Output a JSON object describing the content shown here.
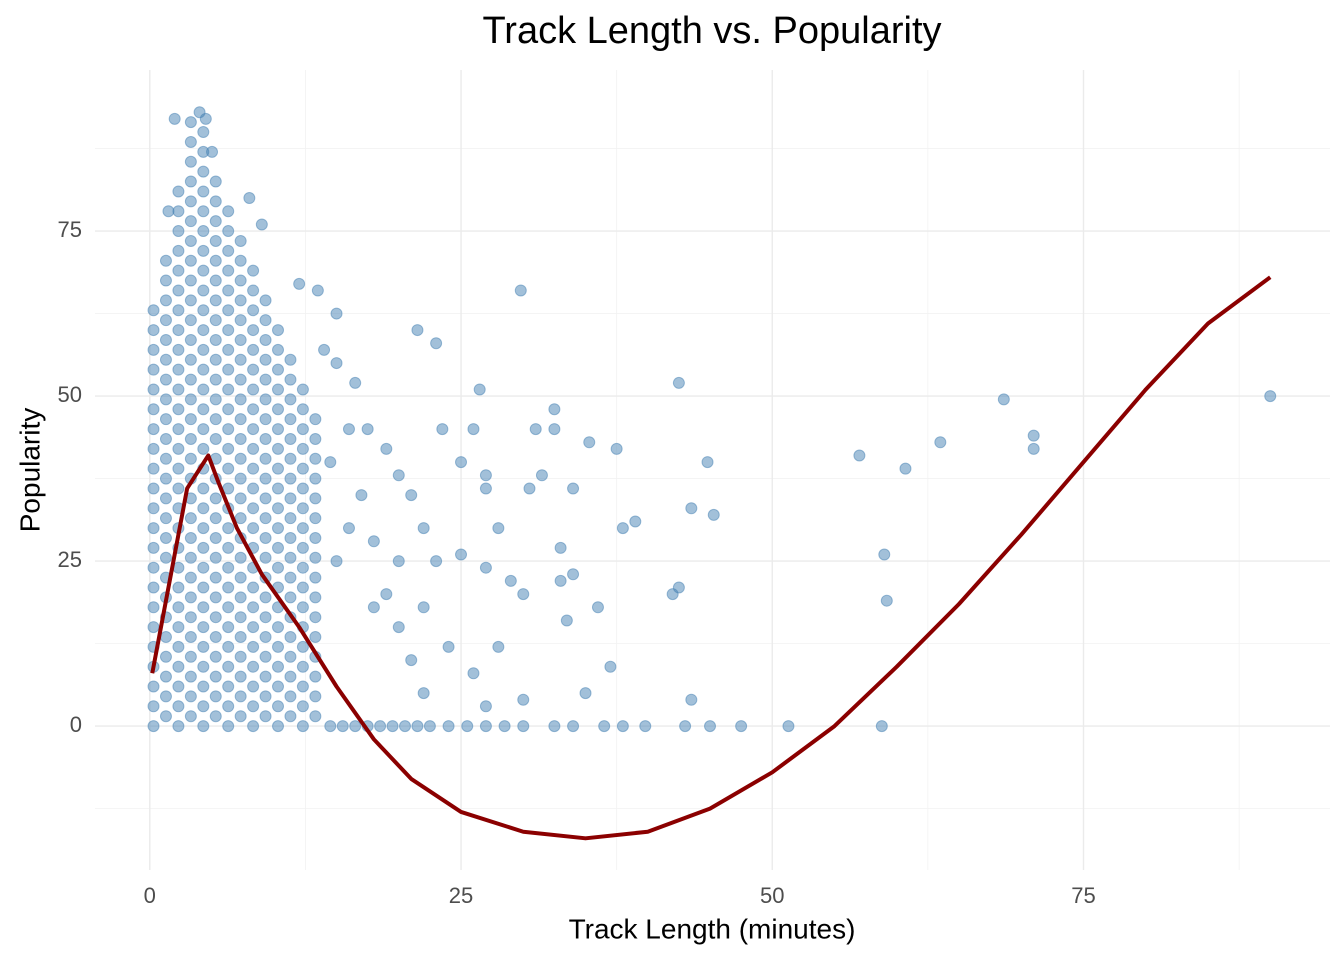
{
  "chart_data": {
    "type": "scatter",
    "title": "Track Length vs. Popularity",
    "x_label": "Track Length (minutes)",
    "y_label": "Popularity",
    "xlim": [
      -4.4,
      94.8
    ],
    "ylim": [
      -21.8,
      99.4
    ],
    "xticks": [
      0,
      25,
      50,
      75
    ],
    "yticks": [
      0,
      25,
      50,
      75
    ],
    "x_minor_ticks": [
      12.5,
      37.5,
      62.5,
      87.5
    ],
    "y_minor_ticks": [
      -12.5,
      12.5,
      37.5,
      62.5,
      87.5
    ],
    "grid": true,
    "points": {
      "color": "#4682b4",
      "opacity": 0.5,
      "x": [
        0.3,
        0.3,
        0.3,
        0.3,
        0.3,
        0.3,
        0.3,
        0.3,
        0.3,
        0.3,
        0.3,
        0.3,
        0.3,
        0.3,
        0.3,
        0.3,
        0.3,
        0.3,
        0.3,
        0.3,
        0.3,
        0.3,
        1.3,
        1.3,
        1.3,
        1.3,
        1.3,
        1.3,
        1.3,
        1.3,
        1.3,
        1.3,
        1.3,
        1.3,
        1.3,
        1.3,
        1.3,
        1.3,
        1.3,
        1.3,
        1.3,
        1.3,
        1.3,
        1.3,
        1.3,
        1.3,
        2.3,
        2.3,
        2.3,
        2.3,
        2.3,
        2.3,
        2.3,
        2.3,
        2.3,
        2.3,
        2.3,
        2.3,
        2.3,
        2.3,
        2.3,
        2.3,
        2.3,
        2.3,
        2.3,
        2.3,
        2.3,
        2.3,
        2.3,
        2.3,
        2.3,
        2.3,
        2.3,
        2.3,
        3.3,
        3.3,
        3.3,
        3.3,
        3.3,
        3.3,
        3.3,
        3.3,
        3.3,
        3.3,
        3.3,
        3.3,
        3.3,
        3.3,
        3.3,
        3.3,
        3.3,
        3.3,
        3.3,
        3.3,
        3.3,
        3.3,
        3.3,
        3.3,
        3.3,
        3.3,
        3.3,
        3.3,
        3.3,
        3.3,
        3.3,
        4.3,
        4.3,
        4.3,
        4.3,
        4.3,
        4.3,
        4.3,
        4.3,
        4.3,
        4.3,
        4.3,
        4.3,
        4.3,
        4.3,
        4.3,
        4.3,
        4.3,
        4.3,
        4.3,
        4.3,
        4.3,
        4.3,
        4.3,
        4.3,
        4.3,
        4.3,
        4.3,
        4.3,
        4.3,
        4.3,
        4.3,
        5.3,
        5.3,
        5.3,
        5.3,
        5.3,
        5.3,
        5.3,
        5.3,
        5.3,
        5.3,
        5.3,
        5.3,
        5.3,
        5.3,
        5.3,
        5.3,
        5.3,
        5.3,
        5.3,
        5.3,
        5.3,
        5.3,
        5.3,
        5.3,
        5.3,
        5.3,
        5.3,
        5.3,
        6.3,
        6.3,
        6.3,
        6.3,
        6.3,
        6.3,
        6.3,
        6.3,
        6.3,
        6.3,
        6.3,
        6.3,
        6.3,
        6.3,
        6.3,
        6.3,
        6.3,
        6.3,
        6.3,
        6.3,
        6.3,
        6.3,
        6.3,
        6.3,
        6.3,
        6.3,
        6.3,
        7.3,
        7.3,
        7.3,
        7.3,
        7.3,
        7.3,
        7.3,
        7.3,
        7.3,
        7.3,
        7.3,
        7.3,
        7.3,
        7.3,
        7.3,
        7.3,
        7.3,
        7.3,
        7.3,
        7.3,
        7.3,
        7.3,
        7.3,
        7.3,
        7.3,
        8.3,
        8.3,
        8.3,
        8.3,
        8.3,
        8.3,
        8.3,
        8.3,
        8.3,
        8.3,
        8.3,
        8.3,
        8.3,
        8.3,
        8.3,
        8.3,
        8.3,
        8.3,
        8.3,
        8.3,
        8.3,
        8.3,
        8.3,
        8.3,
        9.3,
        9.3,
        9.3,
        9.3,
        9.3,
        9.3,
        9.3,
        9.3,
        9.3,
        9.3,
        9.3,
        9.3,
        9.3,
        9.3,
        9.3,
        9.3,
        9.3,
        9.3,
        9.3,
        9.3,
        9.3,
        9.3,
        10.3,
        10.3,
        10.3,
        10.3,
        10.3,
        10.3,
        10.3,
        10.3,
        10.3,
        10.3,
        10.3,
        10.3,
        10.3,
        10.3,
        10.3,
        10.3,
        10.3,
        10.3,
        10.3,
        10.3,
        10.3,
        11.3,
        11.3,
        11.3,
        11.3,
        11.3,
        11.3,
        11.3,
        11.3,
        11.3,
        11.3,
        11.3,
        11.3,
        11.3,
        11.3,
        11.3,
        11.3,
        11.3,
        11.3,
        11.3,
        12.3,
        12.3,
        12.3,
        12.3,
        12.3,
        12.3,
        12.3,
        12.3,
        12.3,
        12.3,
        12.3,
        12.3,
        12.3,
        12.3,
        12.3,
        12.3,
        12.3,
        12.3,
        13.3,
        13.3,
        13.3,
        13.3,
        13.3,
        13.3,
        13.3,
        13.3,
        13.3,
        13.3,
        13.3,
        13.3,
        13.3,
        13.3,
        13.3,
        13.3,
        1.5,
        2,
        4,
        4.5,
        5,
        8,
        9,
        14.5,
        15.5,
        16.5,
        17.5,
        18.5,
        19.5,
        20.5,
        21.5,
        22.5,
        24,
        25.5,
        27,
        28.5,
        30,
        32.5,
        34,
        36.5,
        38,
        39.8,
        43,
        45,
        47.5,
        51.3,
        58.8,
        14.5,
        15,
        16,
        17,
        18,
        19,
        20,
        21,
        22,
        15,
        14,
        16.5,
        17.5,
        19,
        20,
        21,
        22,
        23,
        18,
        16,
        15,
        20,
        22,
        24,
        13.5,
        12,
        21.5,
        23,
        29.8,
        23.5,
        26,
        26.5,
        25,
        25,
        27,
        27,
        28,
        27,
        30,
        28,
        26,
        27,
        29,
        30,
        31,
        32.5,
        32.5,
        31.5,
        30.5,
        33,
        33,
        34,
        34,
        33.5,
        35,
        36,
        37,
        35.3,
        37.5,
        38,
        39,
        42,
        42.5,
        42.5,
        43.5,
        43.5,
        44.8,
        45.3,
        57,
        59,
        59.2,
        60.7,
        63.5,
        68.6,
        71,
        71,
        90
      ],
      "values": [
        0,
        3,
        6,
        9,
        12,
        15,
        18,
        21,
        24,
        27,
        30,
        33,
        36,
        39,
        42,
        45,
        48,
        51,
        54,
        57,
        60,
        63,
        1.5,
        4.5,
        7.5,
        10.5,
        13.5,
        16.5,
        19.5,
        22.5,
        25.5,
        28.5,
        31.5,
        34.5,
        37.5,
        40.5,
        43.5,
        46.5,
        49.5,
        52.5,
        55.5,
        58.5,
        61.5,
        64.5,
        67.5,
        70.5,
        0,
        3,
        6,
        9,
        12,
        15,
        18,
        21,
        24,
        27,
        30,
        33,
        36,
        39,
        42,
        45,
        48,
        51,
        54,
        57,
        60,
        63,
        66,
        69,
        72,
        75,
        78,
        81,
        1.5,
        4.5,
        7.5,
        10.5,
        13.5,
        16.5,
        19.5,
        22.5,
        25.5,
        28.5,
        31.5,
        34.5,
        37.5,
        40.5,
        43.5,
        46.5,
        49.5,
        52.5,
        55.5,
        58.5,
        61.5,
        64.5,
        67.5,
        70.5,
        73.5,
        76.5,
        79.5,
        82.5,
        85.5,
        88.5,
        91.5,
        0,
        3,
        6,
        9,
        12,
        15,
        18,
        21,
        24,
        27,
        30,
        33,
        36,
        39,
        42,
        45,
        48,
        51,
        54,
        57,
        60,
        63,
        66,
        69,
        72,
        75,
        78,
        81,
        84,
        87,
        90,
        1.5,
        4.5,
        7.5,
        10.5,
        13.5,
        16.5,
        19.5,
        22.5,
        25.5,
        28.5,
        31.5,
        34.5,
        37.5,
        40.5,
        43.5,
        46.5,
        49.5,
        52.5,
        55.5,
        58.5,
        61.5,
        64.5,
        67.5,
        70.5,
        73.5,
        76.5,
        79.5,
        82.5,
        0,
        3,
        6,
        9,
        12,
        15,
        18,
        21,
        24,
        27,
        30,
        33,
        36,
        39,
        42,
        45,
        48,
        51,
        54,
        57,
        60,
        63,
        66,
        69,
        72,
        75,
        78,
        1.5,
        4.5,
        7.5,
        10.5,
        13.5,
        16.5,
        19.5,
        22.5,
        25.5,
        28.5,
        31.5,
        34.5,
        37.5,
        40.5,
        43.5,
        46.5,
        49.5,
        52.5,
        55.5,
        58.5,
        61.5,
        64.5,
        67.5,
        70.5,
        73.5,
        0,
        3,
        6,
        9,
        12,
        15,
        18,
        21,
        24,
        27,
        30,
        33,
        36,
        39,
        42,
        45,
        48,
        51,
        54,
        57,
        60,
        63,
        66,
        69,
        1.5,
        4.5,
        7.5,
        10.5,
        13.5,
        16.5,
        19.5,
        22.5,
        25.5,
        28.5,
        31.5,
        34.5,
        37.5,
        40.5,
        43.5,
        46.5,
        49.5,
        52.5,
        55.5,
        58.5,
        61.5,
        64.5,
        0,
        3,
        6,
        9,
        12,
        15,
        18,
        21,
        24,
        27,
        30,
        33,
        36,
        39,
        42,
        45,
        48,
        51,
        54,
        57,
        60,
        1.5,
        4.5,
        7.5,
        10.5,
        13.5,
        16.5,
        19.5,
        22.5,
        25.5,
        28.5,
        31.5,
        34.5,
        37.5,
        40.5,
        43.5,
        46.5,
        49.5,
        52.5,
        55.5,
        0,
        3,
        6,
        9,
        12,
        15,
        18,
        21,
        24,
        27,
        30,
        33,
        36,
        39,
        42,
        45,
        48,
        51,
        1.5,
        4.5,
        7.5,
        10.5,
        13.5,
        16.5,
        19.5,
        22.5,
        25.5,
        28.5,
        31.5,
        34.5,
        37.5,
        40.5,
        43.5,
        46.5,
        78,
        92,
        93,
        92,
        87,
        80,
        76,
        0,
        0,
        0,
        0,
        0,
        0,
        0,
        0,
        0,
        0,
        0,
        0,
        0,
        0,
        0,
        0,
        0,
        0,
        0,
        0,
        0,
        0,
        0,
        0,
        40,
        55,
        45,
        35,
        28,
        20,
        15,
        10,
        5,
        62.5,
        57,
        52,
        45,
        42,
        38,
        35,
        30,
        25,
        18,
        30,
        25,
        25,
        18,
        12,
        66,
        67,
        60,
        58,
        66,
        45,
        45,
        51,
        40,
        26,
        38,
        36,
        30,
        24,
        20,
        12,
        8,
        3,
        22,
        4,
        45,
        48,
        45,
        38,
        36,
        27,
        22,
        23,
        36,
        16,
        5,
        18,
        9,
        43,
        42,
        30,
        31,
        20,
        52,
        21,
        33,
        4,
        40,
        32,
        41,
        26,
        19,
        39,
        43,
        49.5,
        44,
        42,
        50
      ]
    },
    "smooth": {
      "color": "#8b0000",
      "x": [
        0.2,
        1,
        2,
        3,
        4.7,
        5.5,
        7,
        9,
        12,
        15,
        18,
        21,
        25,
        30,
        35,
        40,
        45,
        50,
        55,
        60,
        65,
        70,
        75,
        80,
        85,
        90
      ],
      "values": [
        8,
        16,
        26,
        36,
        41,
        37,
        30,
        23,
        15,
        6,
        -2,
        -8,
        -13,
        -16,
        -17,
        -16,
        -12.5,
        -7,
        0,
        9,
        18.5,
        29,
        40,
        51,
        61,
        68
      ]
    }
  }
}
